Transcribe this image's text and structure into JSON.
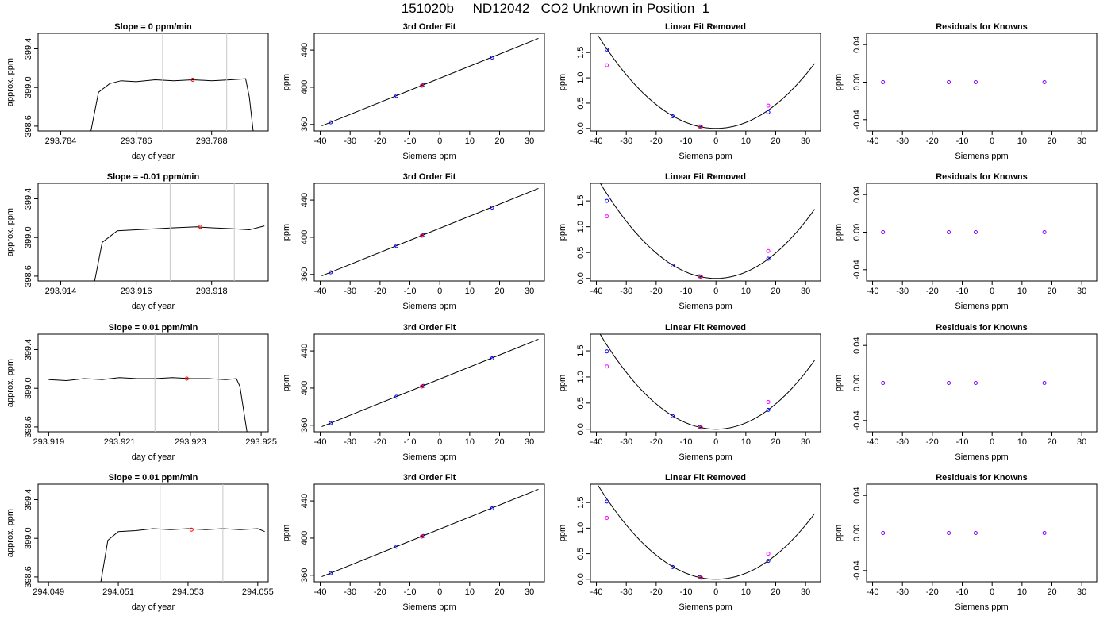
{
  "figure": {
    "title": "151020b     ND12042   CO2 Unknown in Position  1"
  },
  "colors": {
    "axis": "#000000",
    "trace": "#000000",
    "marker_line": "#c8c8c8",
    "known_point": "#0000ff",
    "unknown_point": "#ff0000",
    "linear_point": "#ff00ff",
    "residual_point": "#8000ff"
  },
  "chart_data": [
    {
      "type": "line",
      "row": 1,
      "col": 1,
      "title": "Slope =  0  ppm/min",
      "xlabel": "day of year",
      "ylabel": "approx. ppm",
      "xlim": [
        293.7834,
        293.7895
      ],
      "ylim": [
        398.55,
        399.56
      ],
      "xticks": [
        293.784,
        293.786,
        293.788
      ],
      "xtick_labels": [
        "293.784",
        "293.786",
        "293.788"
      ],
      "yticks": [
        398.6,
        399.0,
        399.4
      ],
      "ytick_labels": [
        "398.6",
        "399.0",
        "399.4"
      ],
      "x": [
        293.7848,
        293.785,
        293.7853,
        293.7856,
        293.786,
        293.7865,
        293.787,
        293.7875,
        293.788,
        293.7885,
        293.7889,
        293.789,
        293.7891
      ],
      "y": [
        398.55,
        398.95,
        399.04,
        399.07,
        399.06,
        399.08,
        399.07,
        399.08,
        399.07,
        399.08,
        399.09,
        398.9,
        398.55
      ],
      "vlines": [
        293.7867,
        293.7884
      ],
      "unknown_point": {
        "x": 293.7875,
        "y": 399.08
      }
    },
    {
      "type": "scatter",
      "row": 1,
      "col": 2,
      "title": "3rd Order Fit",
      "xlabel": "Siemens ppm",
      "ylabel": "ppm",
      "xlim": [
        -42,
        35
      ],
      "ylim": [
        353,
        458
      ],
      "xticks": [
        -40,
        -30,
        -20,
        -10,
        0,
        10,
        20,
        30
      ],
      "xtick_labels": [
        "-40",
        "-30",
        "-20",
        "-10",
        "0",
        "10",
        "20",
        "30"
      ],
      "yticks": [
        360,
        400,
        440
      ],
      "ytick_labels": [
        "360",
        "400",
        "440"
      ],
      "fit_line": {
        "x": [
          -39.5,
          33
        ],
        "y": [
          358.5,
          452.5
        ]
      },
      "known_points": {
        "x": [
          -36.5,
          -14.5,
          -5.5,
          17.5
        ],
        "y": [
          362.3,
          390.7,
          402.3,
          432.0
        ]
      },
      "unknown_points": {
        "x": [
          -6.0
        ],
        "y": [
          401.7
        ]
      }
    },
    {
      "type": "scatter",
      "row": 1,
      "col": 3,
      "title": "Linear Fit Removed",
      "xlabel": "Siemens ppm",
      "ylabel": "ppm",
      "xlim": [
        -42,
        35
      ],
      "ylim": [
        -0.05,
        1.88
      ],
      "xticks": [
        -40,
        -30,
        -20,
        -10,
        0,
        10,
        20,
        30
      ],
      "xtick_labels": [
        "-40",
        "-30",
        "-20",
        "-10",
        "0",
        "10",
        "20",
        "30"
      ],
      "yticks": [
        0.0,
        0.5,
        1.0,
        1.5
      ],
      "ytick_labels": [
        "0.0",
        "0.5",
        "1.0",
        "1.5"
      ],
      "curve": {
        "a": 0.00118,
        "b": 0.0
      },
      "known_points": {
        "x": [
          -36.5,
          -14.5,
          -5.5,
          17.5
        ],
        "y": [
          1.56,
          0.24,
          0.04,
          0.32
        ]
      },
      "linear_points": {
        "x": [
          -36.5,
          17.5
        ],
        "y": [
          1.25,
          0.45
        ]
      },
      "unknown_points": {
        "x": [
          -5.0
        ],
        "y": [
          0.03
        ]
      }
    },
    {
      "type": "scatter",
      "row": 1,
      "col": 4,
      "title": "Residuals for Knowns",
      "xlabel": "Siemens ppm",
      "ylabel": "ppm",
      "xlim": [
        -42,
        35
      ],
      "ylim": [
        -0.052,
        0.052
      ],
      "xticks": [
        -40,
        -30,
        -20,
        -10,
        0,
        10,
        20,
        30
      ],
      "xtick_labels": [
        "-40",
        "-30",
        "-20",
        "-10",
        "0",
        "10",
        "20",
        "30"
      ],
      "yticks": [
        -0.04,
        0.0,
        0.04
      ],
      "ytick_labels": [
        "-0.04",
        "0.00",
        "0.04"
      ],
      "points": {
        "x": [
          -36.5,
          -14.5,
          -5.5,
          17.5
        ],
        "y": [
          0,
          0,
          0,
          0
        ]
      }
    },
    {
      "type": "line",
      "row": 2,
      "col": 1,
      "title": "Slope =  -0.01  ppm/min",
      "xlabel": "day of year",
      "ylabel": "approx. ppm",
      "xlim": [
        293.9134,
        293.9195
      ],
      "ylim": [
        398.55,
        399.56
      ],
      "xticks": [
        293.914,
        293.916,
        293.918
      ],
      "xtick_labels": [
        "293.914",
        "293.916",
        "293.918"
      ],
      "yticks": [
        398.6,
        399.0,
        399.4
      ],
      "ytick_labels": [
        "398.6",
        "399.0",
        "399.4"
      ],
      "x": [
        293.9149,
        293.9151,
        293.9155,
        293.916,
        293.9165,
        293.917,
        293.9176,
        293.918,
        293.9186,
        293.919,
        293.9194
      ],
      "y": [
        398.55,
        398.95,
        399.07,
        399.08,
        399.09,
        399.1,
        399.11,
        399.1,
        399.09,
        399.08,
        399.12
      ],
      "vlines": [
        293.9169,
        293.9186
      ],
      "unknown_point": {
        "x": 293.9177,
        "y": 399.11
      }
    },
    {
      "type": "scatter",
      "row": 2,
      "col": 2,
      "title": "3rd Order Fit",
      "xlabel": "Siemens ppm",
      "ylabel": "ppm",
      "xlim": [
        -42,
        35
      ],
      "ylim": [
        353,
        458
      ],
      "xticks": [
        -40,
        -30,
        -20,
        -10,
        0,
        10,
        20,
        30
      ],
      "xtick_labels": [
        "-40",
        "-30",
        "-20",
        "-10",
        "0",
        "10",
        "20",
        "30"
      ],
      "yticks": [
        360,
        400,
        440
      ],
      "ytick_labels": [
        "360",
        "400",
        "440"
      ],
      "fit_line": {
        "x": [
          -39.5,
          33
        ],
        "y": [
          358.5,
          452.5
        ]
      },
      "known_points": {
        "x": [
          -36.5,
          -14.5,
          -5.5,
          17.5
        ],
        "y": [
          362.3,
          390.7,
          402.3,
          432.0
        ]
      },
      "unknown_points": {
        "x": [
          -6.0
        ],
        "y": [
          401.7
        ]
      }
    },
    {
      "type": "scatter",
      "row": 2,
      "col": 3,
      "title": "Linear Fit Removed",
      "xlabel": "Siemens ppm",
      "ylabel": "ppm",
      "xlim": [
        -42,
        35
      ],
      "ylim": [
        -0.05,
        1.84
      ],
      "xticks": [
        -40,
        -30,
        -20,
        -10,
        0,
        10,
        20,
        30
      ],
      "xtick_labels": [
        "-40",
        "-30",
        "-20",
        "-10",
        "0",
        "10",
        "20",
        "30"
      ],
      "yticks": [
        0.0,
        0.5,
        1.0,
        1.5
      ],
      "ytick_labels": [
        "0.0",
        "0.5",
        "1.0",
        "1.5"
      ],
      "curve": {
        "a": 0.00123,
        "b": 0.0
      },
      "known_points": {
        "x": [
          -36.5,
          -14.5,
          -5.5,
          17.5
        ],
        "y": [
          1.5,
          0.25,
          0.04,
          0.38
        ]
      },
      "linear_points": {
        "x": [
          -36.5,
          17.5
        ],
        "y": [
          1.2,
          0.53
        ]
      },
      "unknown_points": {
        "x": [
          -5.0
        ],
        "y": [
          0.03
        ]
      }
    },
    {
      "type": "scatter",
      "row": 2,
      "col": 4,
      "title": "Residuals for Knowns",
      "xlabel": "Siemens ppm",
      "ylabel": "ppm",
      "xlim": [
        -42,
        35
      ],
      "ylim": [
        -0.052,
        0.052
      ],
      "xticks": [
        -40,
        -30,
        -20,
        -10,
        0,
        10,
        20,
        30
      ],
      "xtick_labels": [
        "-40",
        "-30",
        "-20",
        "-10",
        "0",
        "10",
        "20",
        "30"
      ],
      "yticks": [
        -0.04,
        0.0,
        0.04
      ],
      "ytick_labels": [
        "-0.04",
        "0.00",
        "0.04"
      ],
      "points": {
        "x": [
          -36.5,
          -14.5,
          -5.5,
          17.5
        ],
        "y": [
          0,
          0,
          0,
          0
        ]
      }
    },
    {
      "type": "line",
      "row": 3,
      "col": 1,
      "title": "Slope =  0.01  ppm/min",
      "xlabel": "day of year",
      "ylabel": "approx. ppm",
      "xlim": [
        293.9187,
        293.9252
      ],
      "ylim": [
        398.55,
        399.56
      ],
      "xticks": [
        293.919,
        293.921,
        293.923,
        293.925
      ],
      "xtick_labels": [
        "293.919",
        "293.921",
        "293.923",
        "293.925"
      ],
      "yticks": [
        398.6,
        399.0,
        399.4
      ],
      "ytick_labels": [
        "398.6",
        "399.0",
        "399.4"
      ],
      "x": [
        293.919,
        293.9195,
        293.92,
        293.9205,
        293.921,
        293.9215,
        293.922,
        293.9225,
        293.923,
        293.9235,
        293.924,
        293.9243,
        293.9244,
        293.9246
      ],
      "y": [
        399.09,
        399.08,
        399.1,
        399.09,
        399.11,
        399.1,
        399.1,
        399.11,
        399.1,
        399.1,
        399.09,
        399.1,
        399.02,
        398.55
      ],
      "vlines": [
        293.922,
        293.9238
      ],
      "unknown_point": {
        "x": 293.9229,
        "y": 399.1
      }
    },
    {
      "type": "scatter",
      "row": 3,
      "col": 2,
      "title": "3rd Order Fit",
      "xlabel": "Siemens ppm",
      "ylabel": "ppm",
      "xlim": [
        -42,
        35
      ],
      "ylim": [
        353,
        458
      ],
      "xticks": [
        -40,
        -30,
        -20,
        -10,
        0,
        10,
        20,
        30
      ],
      "xtick_labels": [
        "-40",
        "-30",
        "-20",
        "-10",
        "0",
        "10",
        "20",
        "30"
      ],
      "yticks": [
        360,
        400,
        440
      ],
      "ytick_labels": [
        "360",
        "400",
        "440"
      ],
      "fit_line": {
        "x": [
          -39.5,
          33
        ],
        "y": [
          358.5,
          452.5
        ]
      },
      "known_points": {
        "x": [
          -36.5,
          -14.5,
          -5.5,
          17.5
        ],
        "y": [
          362.3,
          390.7,
          402.3,
          432.0
        ]
      },
      "unknown_points": {
        "x": [
          -6.0
        ],
        "y": [
          401.7
        ]
      }
    },
    {
      "type": "scatter",
      "row": 3,
      "col": 3,
      "title": "Linear Fit Removed",
      "xlabel": "Siemens ppm",
      "ylabel": "ppm",
      "xlim": [
        -42,
        35
      ],
      "ylim": [
        -0.05,
        1.82
      ],
      "xticks": [
        -40,
        -30,
        -20,
        -10,
        0,
        10,
        20,
        30
      ],
      "xtick_labels": [
        "-40",
        "-30",
        "-20",
        "-10",
        "0",
        "10",
        "20",
        "30"
      ],
      "yticks": [
        0.0,
        0.5,
        1.0,
        1.5
      ],
      "ytick_labels": [
        "0.0",
        "0.5",
        "1.0",
        "1.5"
      ],
      "curve": {
        "a": 0.00121,
        "b": 0.0
      },
      "known_points": {
        "x": [
          -36.5,
          -14.5,
          -5.5,
          17.5
        ],
        "y": [
          1.49,
          0.25,
          0.04,
          0.37
        ]
      },
      "linear_points": {
        "x": [
          -36.5,
          17.5
        ],
        "y": [
          1.2,
          0.52
        ]
      },
      "unknown_points": {
        "x": [
          -5.0
        ],
        "y": [
          0.03
        ]
      }
    },
    {
      "type": "scatter",
      "row": 3,
      "col": 4,
      "title": "Residuals for Knowns",
      "xlabel": "Siemens ppm",
      "ylabel": "ppm",
      "xlim": [
        -42,
        35
      ],
      "ylim": [
        -0.052,
        0.052
      ],
      "xticks": [
        -40,
        -30,
        -20,
        -10,
        0,
        10,
        20,
        30
      ],
      "xtick_labels": [
        "-40",
        "-30",
        "-20",
        "-10",
        "0",
        "10",
        "20",
        "30"
      ],
      "yticks": [
        -0.04,
        0.0,
        0.04
      ],
      "ytick_labels": [
        "-0.04",
        "0.00",
        "0.04"
      ],
      "points": {
        "x": [
          -36.5,
          -14.5,
          -5.5,
          17.5
        ],
        "y": [
          0,
          0,
          0,
          0
        ]
      }
    },
    {
      "type": "line",
      "row": 4,
      "col": 1,
      "title": "Slope =  0.01  ppm/min",
      "xlabel": "day of year",
      "ylabel": "approx. ppm",
      "xlim": [
        294.0487,
        294.0553
      ],
      "ylim": [
        398.55,
        399.56
      ],
      "xticks": [
        294.049,
        294.051,
        294.053,
        294.055
      ],
      "xtick_labels": [
        "294.049",
        "294.051",
        "294.053",
        "294.055"
      ],
      "yticks": [
        398.6,
        399.0,
        399.4
      ],
      "ytick_labels": [
        "398.6",
        "399.0",
        "399.4"
      ],
      "x": [
        294.0505,
        294.0507,
        294.051,
        294.0515,
        294.052,
        294.0525,
        294.053,
        294.0535,
        294.054,
        294.0545,
        294.055,
        294.0552
      ],
      "y": [
        398.55,
        398.98,
        399.07,
        399.08,
        399.1,
        399.09,
        399.1,
        399.09,
        399.1,
        399.09,
        399.1,
        399.07
      ],
      "vlines": [
        294.0522,
        294.054
      ],
      "unknown_point": {
        "x": 294.0531,
        "y": 399.09
      }
    },
    {
      "type": "scatter",
      "row": 4,
      "col": 2,
      "title": "3rd Order Fit",
      "xlabel": "Siemens ppm",
      "ylabel": "ppm",
      "xlim": [
        -42,
        35
      ],
      "ylim": [
        353,
        458
      ],
      "xticks": [
        -40,
        -30,
        -20,
        -10,
        0,
        10,
        20,
        30
      ],
      "xtick_labels": [
        "-40",
        "-30",
        "-20",
        "-10",
        "0",
        "10",
        "20",
        "30"
      ],
      "yticks": [
        360,
        400,
        440
      ],
      "ytick_labels": [
        "360",
        "400",
        "440"
      ],
      "fit_line": {
        "x": [
          -39.5,
          33
        ],
        "y": [
          358.5,
          452.5
        ]
      },
      "known_points": {
        "x": [
          -36.5,
          -14.5,
          -5.5,
          17.5
        ],
        "y": [
          362.3,
          390.7,
          402.3,
          432.0
        ]
      },
      "unknown_points": {
        "x": [
          -6.0
        ],
        "y": [
          401.7
        ]
      }
    },
    {
      "type": "scatter",
      "row": 4,
      "col": 3,
      "title": "Linear Fit Removed",
      "xlabel": "Siemens ppm",
      "ylabel": "ppm",
      "xlim": [
        -42,
        35
      ],
      "ylim": [
        -0.05,
        1.86
      ],
      "xticks": [
        -40,
        -30,
        -20,
        -10,
        0,
        10,
        20,
        30
      ],
      "xtick_labels": [
        "-40",
        "-30",
        "-20",
        "-10",
        "0",
        "10",
        "20",
        "30"
      ],
      "yticks": [
        0.0,
        0.5,
        1.0,
        1.5
      ],
      "ytick_labels": [
        "0.0",
        "0.5",
        "1.0",
        "1.5"
      ],
      "curve": {
        "a": 0.00118,
        "b": 0.0
      },
      "known_points": {
        "x": [
          -36.5,
          -14.5,
          -5.5,
          17.5
        ],
        "y": [
          1.52,
          0.24,
          0.04,
          0.36
        ]
      },
      "linear_points": {
        "x": [
          -36.5,
          17.5
        ],
        "y": [
          1.2,
          0.5
        ]
      },
      "unknown_points": {
        "x": [
          -5.0
        ],
        "y": [
          0.03
        ]
      }
    },
    {
      "type": "scatter",
      "row": 4,
      "col": 4,
      "title": "Residuals for Knowns",
      "xlabel": "Siemens ppm",
      "ylabel": "ppm",
      "xlim": [
        -42,
        35
      ],
      "ylim": [
        -0.052,
        0.052
      ],
      "xticks": [
        -40,
        -30,
        -20,
        -10,
        0,
        10,
        20,
        30
      ],
      "xtick_labels": [
        "-40",
        "-30",
        "-20",
        "-10",
        "0",
        "10",
        "20",
        "30"
      ],
      "yticks": [
        -0.04,
        0.0,
        0.04
      ],
      "ytick_labels": [
        "-0.04",
        "0.00",
        "0.04"
      ],
      "points": {
        "x": [
          -36.5,
          -14.5,
          -5.5,
          17.5
        ],
        "y": [
          0,
          0,
          0,
          0
        ]
      }
    }
  ]
}
